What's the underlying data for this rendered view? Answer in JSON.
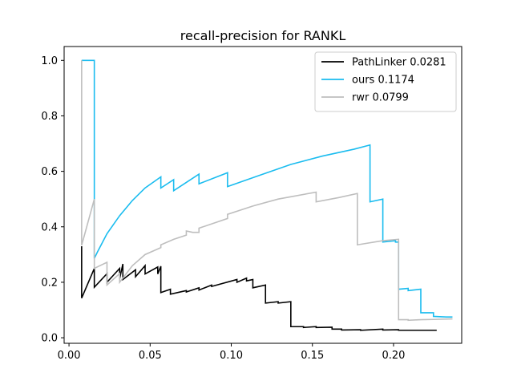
{
  "chart_data": {
    "type": "line",
    "title": "recall-precision for RANKL",
    "xlabel": "",
    "ylabel": "",
    "xlim": [
      -0.003,
      0.242
    ],
    "ylim": [
      -0.02,
      1.05
    ],
    "xticks": [
      0.0,
      0.05,
      0.1,
      0.15,
      0.2
    ],
    "xtick_labels": [
      "0.00",
      "0.05",
      "0.10",
      "0.15",
      "0.20"
    ],
    "yticks": [
      0.0,
      0.2,
      0.4,
      0.6,
      0.8,
      1.0
    ],
    "ytick_labels": [
      "0.0",
      "0.2",
      "0.4",
      "0.6",
      "0.8",
      "1.0"
    ],
    "grid": false,
    "legend": "top-right",
    "series": [
      {
        "name": "PathLinker 0.0281",
        "color": "#000000",
        "points": [
          [
            0.0078,
            0.33
          ],
          [
            0.0078,
            0.143
          ],
          [
            0.0156,
            0.25
          ],
          [
            0.0156,
            0.182
          ],
          [
            0.0234,
            0.231
          ],
          [
            0.0234,
            0.2
          ],
          [
            0.0312,
            0.25
          ],
          [
            0.0312,
            0.213
          ],
          [
            0.0332,
            0.266
          ],
          [
            0.0332,
            0.21
          ],
          [
            0.041,
            0.245
          ],
          [
            0.041,
            0.22
          ],
          [
            0.0469,
            0.26
          ],
          [
            0.0469,
            0.23
          ],
          [
            0.0547,
            0.255
          ],
          [
            0.0547,
            0.23
          ],
          [
            0.0566,
            0.258
          ],
          [
            0.0566,
            0.163
          ],
          [
            0.0625,
            0.175
          ],
          [
            0.0625,
            0.157
          ],
          [
            0.0723,
            0.17
          ],
          [
            0.0723,
            0.165
          ],
          [
            0.0801,
            0.18
          ],
          [
            0.0801,
            0.172
          ],
          [
            0.0879,
            0.19
          ],
          [
            0.0879,
            0.185
          ],
          [
            0.1035,
            0.21
          ],
          [
            0.1035,
            0.2
          ],
          [
            0.1094,
            0.215
          ],
          [
            0.1094,
            0.205
          ],
          [
            0.1133,
            0.21
          ],
          [
            0.1133,
            0.18
          ],
          [
            0.1211,
            0.19
          ],
          [
            0.1211,
            0.125
          ],
          [
            0.1289,
            0.13
          ],
          [
            0.1289,
            0.125
          ],
          [
            0.1367,
            0.13
          ],
          [
            0.1367,
            0.04
          ],
          [
            0.1445,
            0.04
          ],
          [
            0.1445,
            0.037
          ],
          [
            0.1523,
            0.04
          ],
          [
            0.1523,
            0.037
          ],
          [
            0.1621,
            0.038
          ],
          [
            0.1621,
            0.031
          ],
          [
            0.168,
            0.031
          ],
          [
            0.168,
            0.028
          ],
          [
            0.1797,
            0.029
          ],
          [
            0.1797,
            0.027
          ],
          [
            0.1934,
            0.031
          ],
          [
            0.1934,
            0.028
          ],
          [
            0.2031,
            0.029
          ],
          [
            0.2031,
            0.027
          ],
          [
            0.2266,
            0.027
          ]
        ]
      },
      {
        "name": "ours 0.1174",
        "color": "#1ABCEF",
        "points": [
          [
            0.0078,
            1.0
          ],
          [
            0.0156,
            1.0
          ],
          [
            0.0156,
            0.286
          ],
          [
            0.0176,
            0.31
          ],
          [
            0.0234,
            0.375
          ],
          [
            0.0312,
            0.44
          ],
          [
            0.0391,
            0.495
          ],
          [
            0.0469,
            0.54
          ],
          [
            0.0566,
            0.58
          ],
          [
            0.0566,
            0.54
          ],
          [
            0.0645,
            0.57
          ],
          [
            0.0645,
            0.53
          ],
          [
            0.0723,
            0.56
          ],
          [
            0.0801,
            0.59
          ],
          [
            0.0801,
            0.555
          ],
          [
            0.0977,
            0.595
          ],
          [
            0.0977,
            0.545
          ],
          [
            0.1172,
            0.585
          ],
          [
            0.1367,
            0.625
          ],
          [
            0.1562,
            0.655
          ],
          [
            0.1758,
            0.68
          ],
          [
            0.1855,
            0.695
          ],
          [
            0.1855,
            0.49
          ],
          [
            0.1934,
            0.5
          ],
          [
            0.1934,
            0.345
          ],
          [
            0.2012,
            0.35
          ],
          [
            0.2012,
            0.345
          ],
          [
            0.2031,
            0.345
          ],
          [
            0.2031,
            0.175
          ],
          [
            0.209,
            0.178
          ],
          [
            0.209,
            0.17
          ],
          [
            0.2168,
            0.175
          ],
          [
            0.2168,
            0.09
          ],
          [
            0.2246,
            0.09
          ],
          [
            0.2246,
            0.077
          ],
          [
            0.2324,
            0.075
          ],
          [
            0.2363,
            0.075
          ]
        ]
      },
      {
        "name": "rwr 0.0799",
        "color": "#BEBEBE",
        "points": [
          [
            0.0078,
            1.0
          ],
          [
            0.0078,
            0.333
          ],
          [
            0.0156,
            0.5
          ],
          [
            0.0156,
            0.25
          ],
          [
            0.0234,
            0.272
          ],
          [
            0.0234,
            0.19
          ],
          [
            0.0312,
            0.231
          ],
          [
            0.0312,
            0.2
          ],
          [
            0.0391,
            0.26
          ],
          [
            0.0469,
            0.3
          ],
          [
            0.0566,
            0.325
          ],
          [
            0.0566,
            0.335
          ],
          [
            0.0645,
            0.355
          ],
          [
            0.0723,
            0.37
          ],
          [
            0.0723,
            0.385
          ],
          [
            0.0762,
            0.38
          ],
          [
            0.0801,
            0.38
          ],
          [
            0.0801,
            0.395
          ],
          [
            0.0977,
            0.43
          ],
          [
            0.0977,
            0.445
          ],
          [
            0.1133,
            0.475
          ],
          [
            0.1289,
            0.5
          ],
          [
            0.1523,
            0.525
          ],
          [
            0.1523,
            0.49
          ],
          [
            0.166,
            0.505
          ],
          [
            0.1777,
            0.52
          ],
          [
            0.1777,
            0.335
          ],
          [
            0.1934,
            0.35
          ],
          [
            0.2031,
            0.355
          ],
          [
            0.2031,
            0.065
          ],
          [
            0.209,
            0.065
          ],
          [
            0.209,
            0.063
          ],
          [
            0.2168,
            0.065
          ],
          [
            0.2246,
            0.066
          ],
          [
            0.2363,
            0.068
          ]
        ]
      }
    ]
  }
}
